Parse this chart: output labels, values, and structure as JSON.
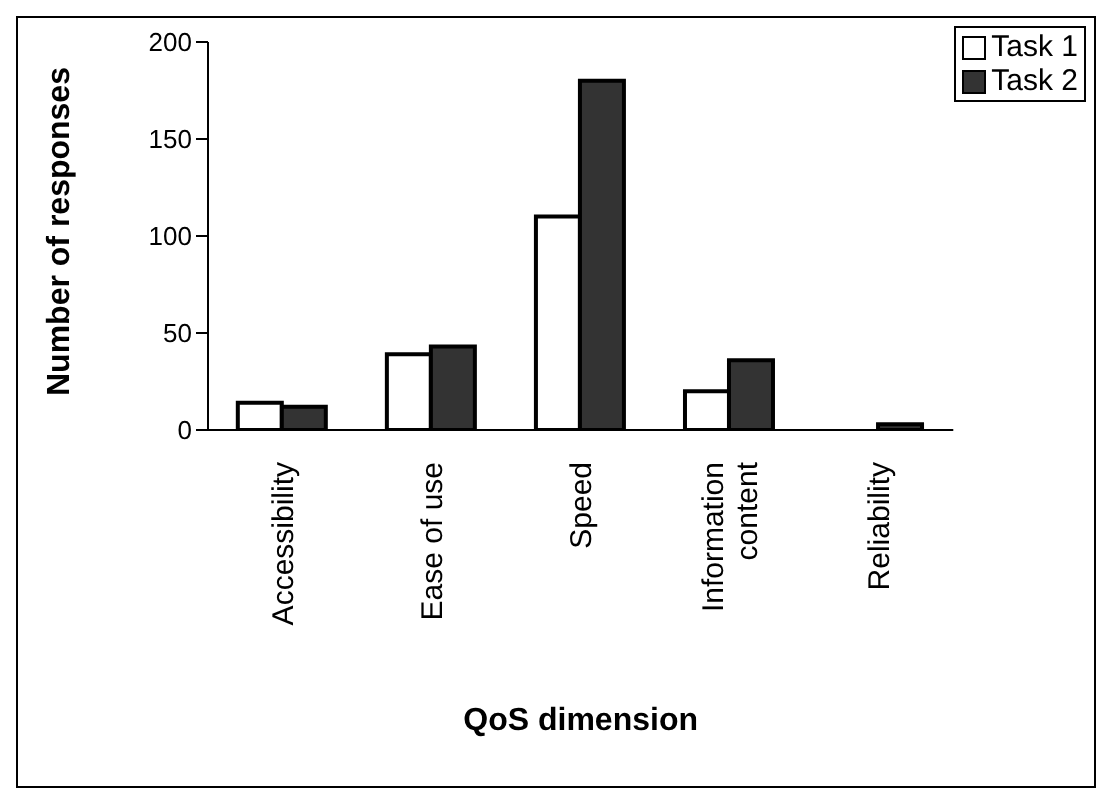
{
  "chart_data": {
    "type": "bar",
    "xlabel": "QoS dimension",
    "ylabel": "Number of responses",
    "categories": [
      "Accessibility",
      "Ease of use",
      "Speed",
      "Information content",
      "Reliability"
    ],
    "series": [
      {
        "name": "Task 1",
        "color": "#ffffff",
        "values": [
          14,
          39,
          110,
          20,
          0
        ]
      },
      {
        "name": "Task 2",
        "color": "#333333",
        "values": [
          12,
          43,
          180,
          36,
          3
        ]
      }
    ],
    "ylim": [
      0,
      200
    ],
    "yticks": [
      0,
      50,
      100,
      150,
      200
    ],
    "grid": false,
    "legend": "top right"
  }
}
